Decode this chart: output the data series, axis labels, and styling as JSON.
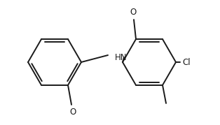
{
  "bg_color": "#ffffff",
  "line_color": "#1a1a1a",
  "line_width": 1.4,
  "font_size": 8.5,
  "figsize": [
    3.14,
    1.79
  ],
  "dpi": 100,
  "xlim": [
    0,
    314
  ],
  "ylim": [
    0,
    179
  ]
}
